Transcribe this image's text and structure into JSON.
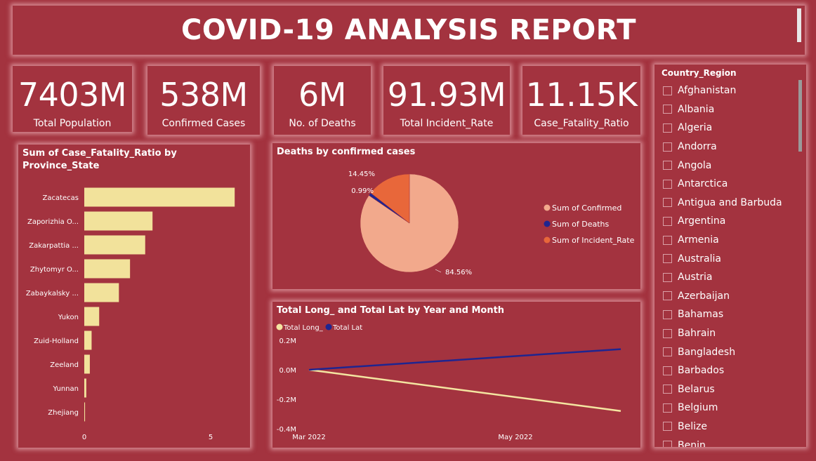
{
  "report": {
    "title": "COVID-19 ANALYSIS REPORT"
  },
  "kpis": [
    {
      "value": "7403M",
      "label": "Total Population"
    },
    {
      "value": "538M",
      "label": "Confirmed Cases"
    },
    {
      "value": "6M",
      "label": "No. of Deaths"
    },
    {
      "value": "91.93M",
      "label": "Total Incident_Rate"
    },
    {
      "value": "11.15K",
      "label": "Case_Fatality_Ratio"
    }
  ],
  "slicer": {
    "title": "Country_Region",
    "items": [
      "Afghanistan",
      "Albania",
      "Algeria",
      "Andorra",
      "Angola",
      "Antarctica",
      "Antigua and Barbuda",
      "Argentina",
      "Armenia",
      "Australia",
      "Austria",
      "Azerbaijan",
      "Bahamas",
      "Bahrain",
      "Bangladesh",
      "Barbados",
      "Belarus",
      "Belgium",
      "Belize",
      "Benin"
    ]
  },
  "colors": {
    "background": "#a3333f",
    "bar": "#f2e29b",
    "pie_confirmed": "#f2a98c",
    "pie_deaths": "#1f2590",
    "pie_incident": "#e8673a",
    "line_long": "#f4e5a1",
    "line_lat": "#1f2590"
  },
  "chart_data": [
    {
      "type": "bar",
      "title": "Sum of Case_Fatality_Ratio by Province_State",
      "categories": [
        "Zacatecas",
        "Zaporizhia O...",
        "Zakarpattia ...",
        "Zhytomyr O...",
        "Zabaykalsky ...",
        "Yukon",
        "Zuid-Holland",
        "Zeeland",
        "Yunnan",
        "Zhejiang"
      ],
      "values": [
        5.95,
        2.7,
        2.41,
        1.81,
        1.37,
        0.59,
        0.29,
        0.22,
        0.08,
        0.03
      ],
      "xlim": [
        0,
        6
      ],
      "xticks": [
        "0",
        "5"
      ],
      "xtick_values": [
        0,
        5
      ],
      "orientation": "horizontal"
    },
    {
      "type": "pie",
      "title": "Deaths by confirmed cases",
      "labels": [
        "Sum of Confirmed",
        "Sum of Deaths",
        "Sum of Incident_Rate"
      ],
      "values": [
        84.56,
        0.99,
        14.45
      ],
      "value_labels": [
        "84.56%",
        "0.99%",
        "14.45%"
      ],
      "legend": "right"
    },
    {
      "type": "line",
      "title": "Total Long_ and Total Lat by Year and Month",
      "x": [
        "Mar 2022",
        "Jun 2022"
      ],
      "xticks": [
        "Mar 2022",
        "May 2022"
      ],
      "series": [
        {
          "name": "Total Long_",
          "values": [
            0.0,
            -0.28
          ]
        },
        {
          "name": "Total Lat",
          "values": [
            0.0,
            0.14
          ]
        }
      ],
      "ylim": [
        -0.4,
        0.2
      ],
      "yticks": [
        "0.2M",
        "0.0M",
        "-0.2M",
        "-0.4M"
      ],
      "ytick_values": [
        0.2,
        0.0,
        -0.2,
        -0.4
      ],
      "legend": "top-left"
    }
  ]
}
